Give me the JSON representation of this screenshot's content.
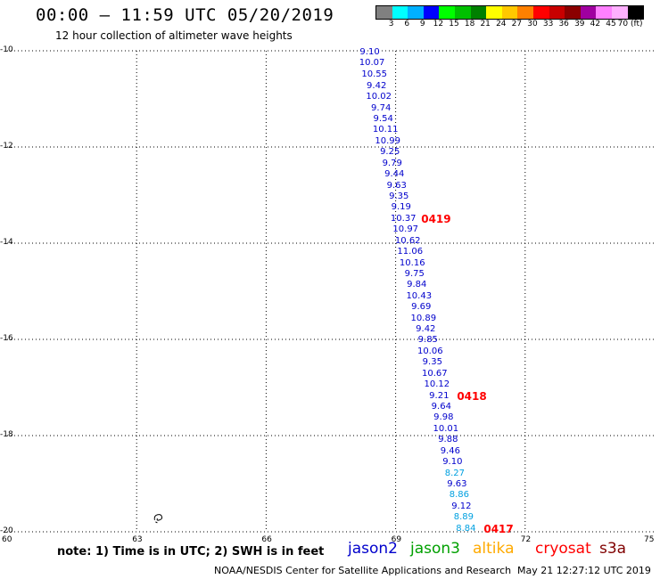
{
  "header": {
    "title": "00:00 – 11:59 UTC 05/20/2019",
    "subtitle": "12 hour collection of altimeter wave heights"
  },
  "legend": {
    "colors": [
      "#808080",
      "#00ffff",
      "#00b0ff",
      "#0000ff",
      "#00ff00",
      "#00c000",
      "#008000",
      "#ffff00",
      "#ffc800",
      "#ff8000",
      "#ff0000",
      "#c80000",
      "#8b0000",
      "#a000a0",
      "#ff80ff",
      "#ffb0ff",
      "#000000"
    ],
    "labels": [
      "3",
      "6",
      "9",
      "12",
      "15",
      "18",
      "21",
      "24",
      "27",
      "30",
      "33",
      "36",
      "39",
      "42",
      "45",
      "70 (ft)"
    ]
  },
  "axes": {
    "y_labels": [
      "-10",
      "-12",
      "-14",
      "-16",
      "-18",
      "-20"
    ],
    "x_labels": [
      "60",
      "63",
      "66",
      "69",
      "72",
      "75"
    ]
  },
  "map_data": {
    "lon_range": [
      60,
      75
    ],
    "lat_range": [
      -20,
      -10
    ],
    "observations": [
      {
        "v": "9.10",
        "c": "#0000cc",
        "lat": -10.0
      },
      {
        "v": "10.07",
        "c": "#0000cc",
        "lat": -10.23
      },
      {
        "v": "10.55",
        "c": "#0000cc",
        "lat": -10.47
      },
      {
        "v": "9.42",
        "c": "#0000cc",
        "lat": -10.7
      },
      {
        "v": "10.02",
        "c": "#0000cc",
        "lat": -10.93
      },
      {
        "v": "9.74",
        "c": "#0000cc",
        "lat": -11.16
      },
      {
        "v": "9.54",
        "c": "#0000cc",
        "lat": -11.39
      },
      {
        "v": "10.11",
        "c": "#0000cc",
        "lat": -11.62
      },
      {
        "v": "10.99",
        "c": "#0000cc",
        "lat": -11.85
      },
      {
        "v": "9.25",
        "c": "#0000cc",
        "lat": -12.08
      },
      {
        "v": "9.79",
        "c": "#0000cc",
        "lat": -12.31
      },
      {
        "v": "9.44",
        "c": "#0000cc",
        "lat": -12.54
      },
      {
        "v": "9.63",
        "c": "#0000cc",
        "lat": -12.77
      },
      {
        "v": "9.35",
        "c": "#0000cc",
        "lat": -13.0
      },
      {
        "v": "9.19",
        "c": "#0000cc",
        "lat": -13.23
      },
      {
        "v": "10.37",
        "c": "#0000cc",
        "lat": -13.46
      },
      {
        "v": "10.97",
        "c": "#0000cc",
        "lat": -13.69
      },
      {
        "v": "10.62",
        "c": "#0000cc",
        "lat": -13.92
      },
      {
        "v": "11.06",
        "c": "#0000cc",
        "lat": -14.15
      },
      {
        "v": "10.16",
        "c": "#0000cc",
        "lat": -14.38
      },
      {
        "v": "9.75",
        "c": "#0000cc",
        "lat": -14.61
      },
      {
        "v": "9.84",
        "c": "#0000cc",
        "lat": -14.84
      },
      {
        "v": "10.43",
        "c": "#0000cc",
        "lat": -15.07
      },
      {
        "v": "9.69",
        "c": "#0000cc",
        "lat": -15.3
      },
      {
        "v": "10.89",
        "c": "#0000cc",
        "lat": -15.53
      },
      {
        "v": "9.42",
        "c": "#0000cc",
        "lat": -15.76
      },
      {
        "v": "9.85",
        "c": "#0000cc",
        "lat": -15.99
      },
      {
        "v": "10.06",
        "c": "#0000cc",
        "lat": -16.22
      },
      {
        "v": "9.35",
        "c": "#0000cc",
        "lat": -16.45
      },
      {
        "v": "10.67",
        "c": "#0000cc",
        "lat": -16.68
      },
      {
        "v": "10.12",
        "c": "#0000cc",
        "lat": -16.91
      },
      {
        "v": "9.21",
        "c": "#0000cc",
        "lat": -17.14
      },
      {
        "v": "9.64",
        "c": "#0000cc",
        "lat": -17.37
      },
      {
        "v": "9.98",
        "c": "#0000cc",
        "lat": -17.6
      },
      {
        "v": "10.01",
        "c": "#0000cc",
        "lat": -17.83
      },
      {
        "v": "9.88",
        "c": "#0000cc",
        "lat": -18.06
      },
      {
        "v": "9.46",
        "c": "#0000cc",
        "lat": -18.29
      },
      {
        "v": "9.10",
        "c": "#0000cc",
        "lat": -18.52
      },
      {
        "v": "8.27",
        "c": "#00a0e0",
        "lat": -18.75
      },
      {
        "v": "9.63",
        "c": "#0000cc",
        "lat": -18.98
      },
      {
        "v": "8.86",
        "c": "#00a0e0",
        "lat": -19.21
      },
      {
        "v": "9.12",
        "c": "#0000cc",
        "lat": -19.44
      },
      {
        "v": "8.89",
        "c": "#00a0e0",
        "lat": -19.67
      },
      {
        "v": "8.84",
        "c": "#00a0e0",
        "lat": -19.9
      }
    ],
    "time_labels": [
      {
        "t": "0419",
        "lat": -13.46
      },
      {
        "t": "0418",
        "lat": -17.14
      },
      {
        "t": "0417",
        "lat": -19.9
      }
    ]
  },
  "footer": {
    "note": "note:  1) Time is in UTC;  2) SWH is in feet",
    "satellites": [
      {
        "name": "jason2",
        "color": "#0000cc"
      },
      {
        "name": "jason3",
        "color": "#00a000"
      },
      {
        "name": "altika",
        "color": "#ffaa00"
      },
      {
        "name": "cryosat",
        "color": "#ff0000"
      },
      {
        "name": "s3a",
        "color": "#800000"
      }
    ],
    "credit": "NOAA/NESDIS Center for Satellite Applications and Research",
    "timestamp": "May 21 12:27:12 UTC 2019"
  }
}
